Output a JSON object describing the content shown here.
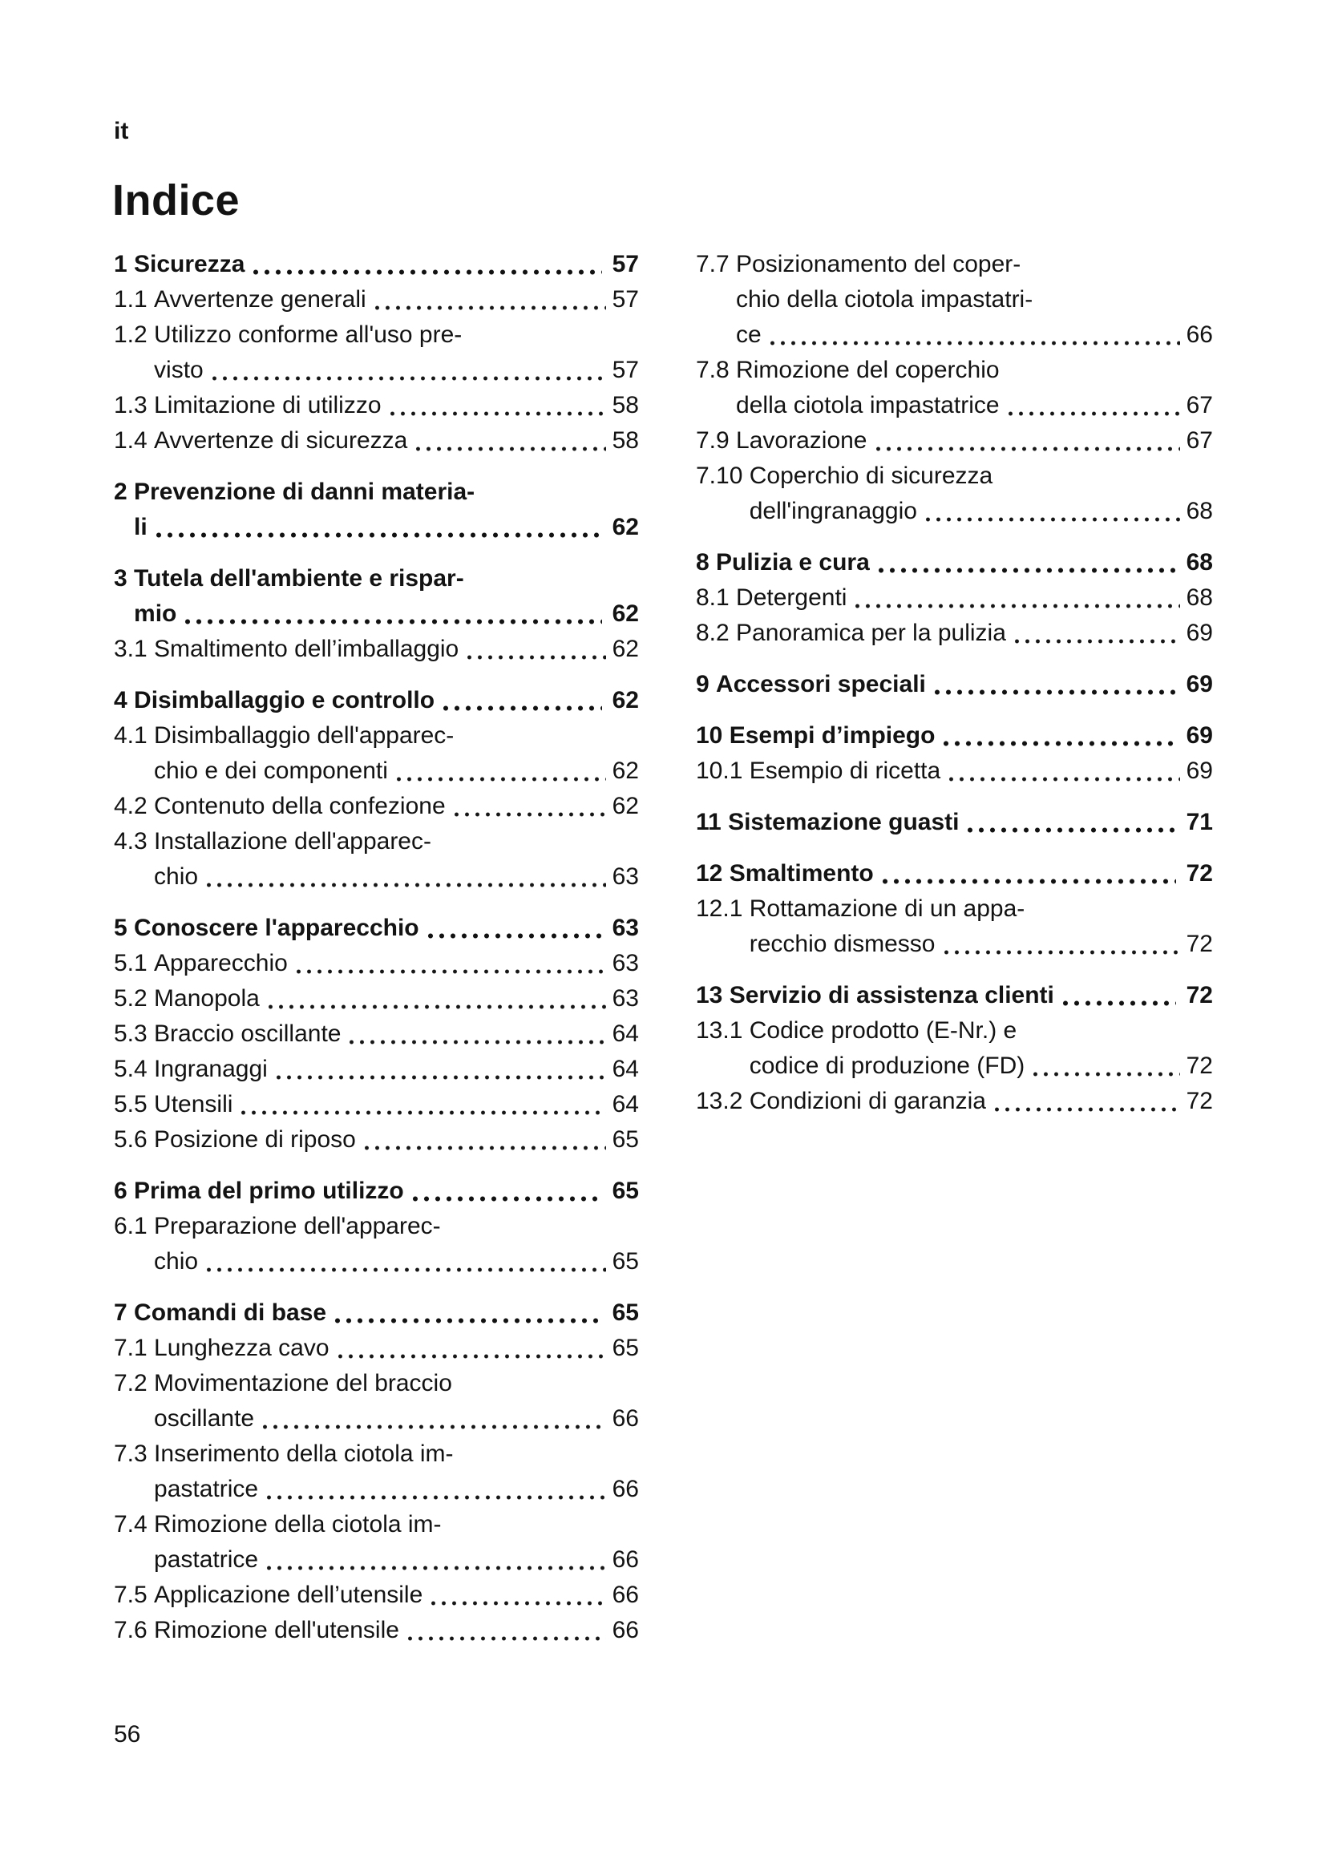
{
  "page": {
    "language_tag": "it",
    "title": "Indice",
    "page_number": "56",
    "text_color": "#131313",
    "background_color": "#ffffff"
  },
  "toc": {
    "left_column_groups": [
      [
        {
          "num": "1",
          "bold": true,
          "title_lines": [
            "Sicurezza"
          ],
          "page": "57"
        },
        {
          "num": "1.1",
          "bold": false,
          "title_lines": [
            "Avvertenze generali"
          ],
          "page": "57"
        },
        {
          "num": "1.2",
          "bold": false,
          "title_lines": [
            "Utilizzo conforme all'uso pre-",
            "visto"
          ],
          "page": "57"
        },
        {
          "num": "1.3",
          "bold": false,
          "title_lines": [
            "Limitazione di utilizzo"
          ],
          "page": "58"
        },
        {
          "num": "1.4",
          "bold": false,
          "title_lines": [
            "Avvertenze di sicurezza"
          ],
          "page": "58"
        }
      ],
      [
        {
          "num": "2",
          "bold": true,
          "title_lines": [
            "Prevenzione di danni materia-",
            "li"
          ],
          "page": "62"
        }
      ],
      [
        {
          "num": "3",
          "bold": true,
          "title_lines": [
            "Tutela dell'ambiente e rispar-",
            "mio"
          ],
          "page": "62"
        },
        {
          "num": "3.1",
          "bold": false,
          "title_lines": [
            "Smaltimento dell’imballaggio"
          ],
          "page": "62"
        }
      ],
      [
        {
          "num": "4",
          "bold": true,
          "title_lines": [
            "Disimballaggio e controllo"
          ],
          "page": "62"
        },
        {
          "num": "4.1",
          "bold": false,
          "title_lines": [
            "Disimballaggio dell'apparec-",
            "chio e dei componenti"
          ],
          "page": "62"
        },
        {
          "num": "4.2",
          "bold": false,
          "title_lines": [
            "Contenuto della confezione"
          ],
          "page": "62"
        },
        {
          "num": "4.3",
          "bold": false,
          "title_lines": [
            "Installazione dell'apparec-",
            "chio"
          ],
          "page": "63"
        }
      ],
      [
        {
          "num": "5",
          "bold": true,
          "title_lines": [
            "Conoscere l'apparecchio"
          ],
          "page": "63"
        },
        {
          "num": "5.1",
          "bold": false,
          "title_lines": [
            "Apparecchio"
          ],
          "page": "63"
        },
        {
          "num": "5.2",
          "bold": false,
          "title_lines": [
            "Manopola"
          ],
          "page": "63"
        },
        {
          "num": "5.3",
          "bold": false,
          "title_lines": [
            "Braccio oscillante"
          ],
          "page": "64"
        },
        {
          "num": "5.4",
          "bold": false,
          "title_lines": [
            "Ingranaggi"
          ],
          "page": "64"
        },
        {
          "num": "5.5",
          "bold": false,
          "title_lines": [
            "Utensili"
          ],
          "page": "64"
        },
        {
          "num": "5.6",
          "bold": false,
          "title_lines": [
            "Posizione di riposo"
          ],
          "page": "65"
        }
      ],
      [
        {
          "num": "6",
          "bold": true,
          "title_lines": [
            "Prima del primo utilizzo"
          ],
          "page": "65"
        },
        {
          "num": "6.1",
          "bold": false,
          "title_lines": [
            "Preparazione dell'apparec-",
            "chio"
          ],
          "page": "65"
        }
      ],
      [
        {
          "num": "7",
          "bold": true,
          "title_lines": [
            "Comandi di base"
          ],
          "page": "65"
        },
        {
          "num": "7.1",
          "bold": false,
          "title_lines": [
            "Lunghezza cavo"
          ],
          "page": "65"
        },
        {
          "num": "7.2",
          "bold": false,
          "title_lines": [
            "Movimentazione del braccio",
            "oscillante"
          ],
          "page": "66"
        },
        {
          "num": "7.3",
          "bold": false,
          "title_lines": [
            "Inserimento della ciotola im-",
            "pastatrice"
          ],
          "page": "66"
        },
        {
          "num": "7.4",
          "bold": false,
          "title_lines": [
            "Rimozione della ciotola im-",
            "pastatrice"
          ],
          "page": "66"
        },
        {
          "num": "7.5",
          "bold": false,
          "title_lines": [
            "Applicazione dell’utensile"
          ],
          "page": "66"
        },
        {
          "num": "7.6",
          "bold": false,
          "title_lines": [
            "Rimozione dell'utensile"
          ],
          "page": "66"
        }
      ]
    ],
    "right_column_groups": [
      [
        {
          "num": "7.7",
          "bold": false,
          "title_lines": [
            "Posizionamento del coper-",
            "chio della ciotola impastatri-",
            "ce"
          ],
          "page": "66"
        },
        {
          "num": "7.8",
          "bold": false,
          "title_lines": [
            "Rimozione del coperchio",
            "della ciotola impastatrice"
          ],
          "page": "67"
        },
        {
          "num": "7.9",
          "bold": false,
          "title_lines": [
            "Lavorazione"
          ],
          "page": "67"
        },
        {
          "num": "7.10",
          "bold": false,
          "title_lines": [
            "Coperchio di sicurezza",
            "dell'ingranaggio"
          ],
          "page": "68"
        }
      ],
      [
        {
          "num": "8",
          "bold": true,
          "title_lines": [
            "Pulizia e cura"
          ],
          "page": "68"
        },
        {
          "num": "8.1",
          "bold": false,
          "title_lines": [
            "Detergenti"
          ],
          "page": "68"
        },
        {
          "num": "8.2",
          "bold": false,
          "title_lines": [
            "Panoramica per la pulizia"
          ],
          "page": "69"
        }
      ],
      [
        {
          "num": "9",
          "bold": true,
          "title_lines": [
            "Accessori speciali"
          ],
          "page": "69"
        }
      ],
      [
        {
          "num": "10",
          "bold": true,
          "title_lines": [
            "Esempi d’impiego"
          ],
          "page": "69"
        },
        {
          "num": "10.1",
          "bold": false,
          "title_lines": [
            "Esempio di ricetta"
          ],
          "page": "69"
        }
      ],
      [
        {
          "num": "11",
          "bold": true,
          "title_lines": [
            "Sistemazione guasti"
          ],
          "page": "71"
        }
      ],
      [
        {
          "num": "12",
          "bold": true,
          "title_lines": [
            "Smaltimento"
          ],
          "page": "72"
        },
        {
          "num": "12.1",
          "bold": false,
          "title_lines": [
            "Rottamazione di un appa-",
            "recchio dismesso"
          ],
          "page": "72"
        }
      ],
      [
        {
          "num": "13",
          "bold": true,
          "title_lines": [
            "Servizio di assistenza clienti"
          ],
          "page": "72"
        },
        {
          "num": "13.1",
          "bold": false,
          "title_lines": [
            "Codice prodotto (E-Nr.) e",
            "codice di produzione (FD)"
          ],
          "page": "72"
        },
        {
          "num": "13.2",
          "bold": false,
          "title_lines": [
            "Condizioni di garanzia"
          ],
          "page": "72"
        }
      ]
    ]
  }
}
